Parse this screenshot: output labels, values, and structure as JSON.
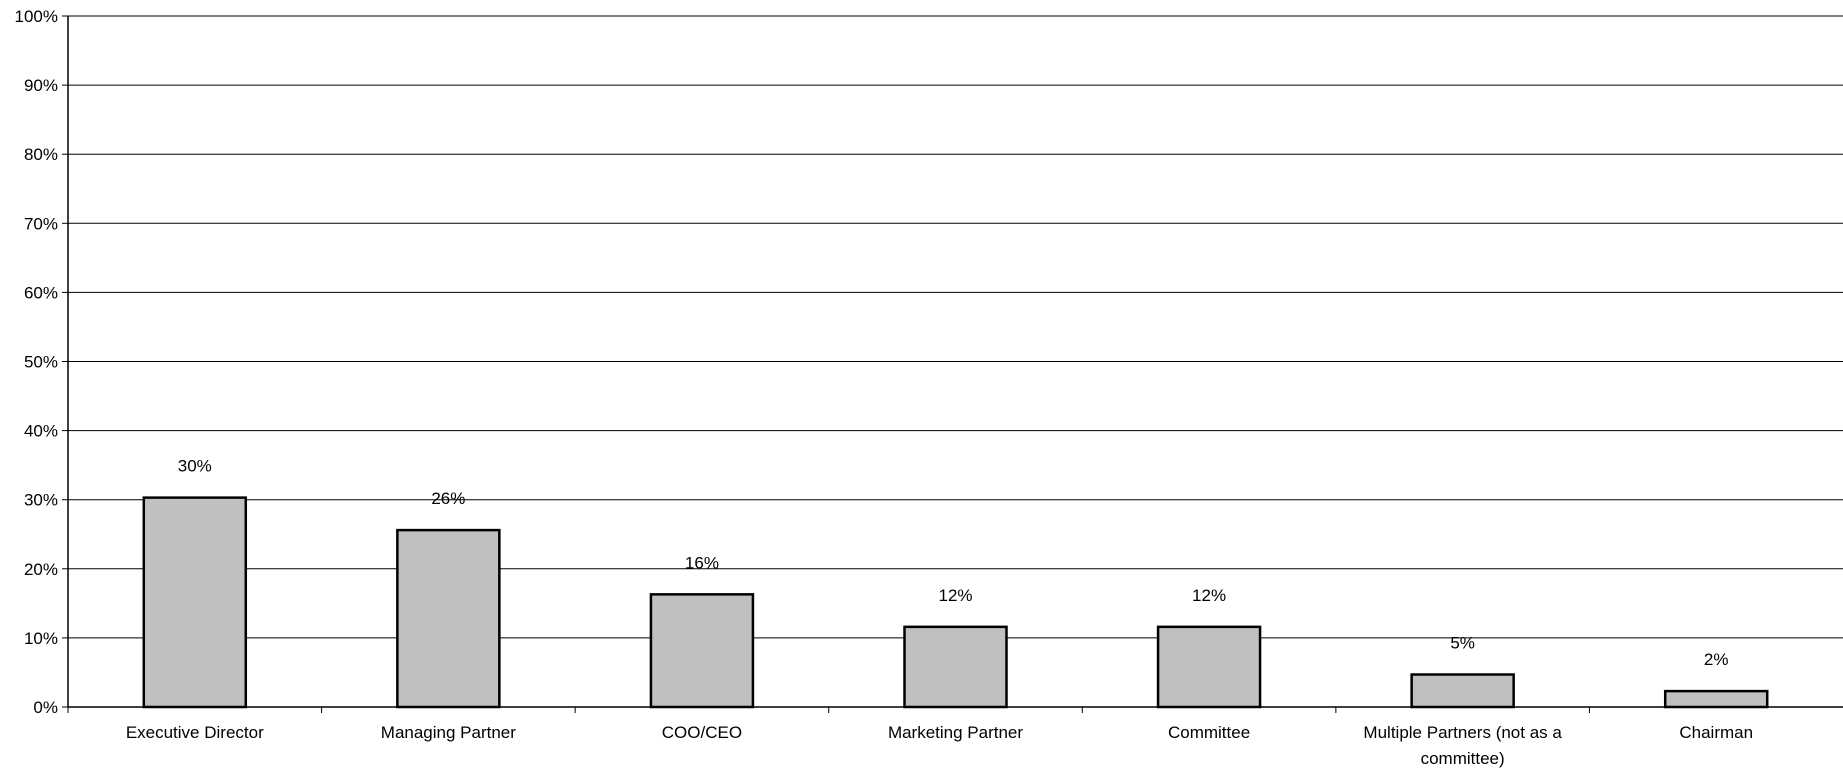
{
  "chart_data": {
    "type": "bar",
    "categories": [
      [
        "Executive Director"
      ],
      [
        "Managing Partner"
      ],
      [
        "COO/CEO"
      ],
      [
        "Marketing Partner"
      ],
      [
        "Committee"
      ],
      [
        "Multiple Partners (not as a",
        "committee)"
      ],
      [
        "Chairman"
      ]
    ],
    "values": [
      30.3,
      25.6,
      16.3,
      11.6,
      11.6,
      4.7,
      2.3
    ],
    "data_labels": [
      "30%",
      "26%",
      "16%",
      "12%",
      "12%",
      "5%",
      "2%"
    ],
    "yticks": [
      "0%",
      "10%",
      "20%",
      "30%",
      "40%",
      "50%",
      "60%",
      "70%",
      "80%",
      "90%",
      "100%"
    ],
    "ylim": [
      0,
      100
    ],
    "grid": true,
    "bar_color": "#c0c0c0",
    "bar_edge_color": "#000000",
    "title": "",
    "xlabel": "",
    "ylabel": ""
  }
}
